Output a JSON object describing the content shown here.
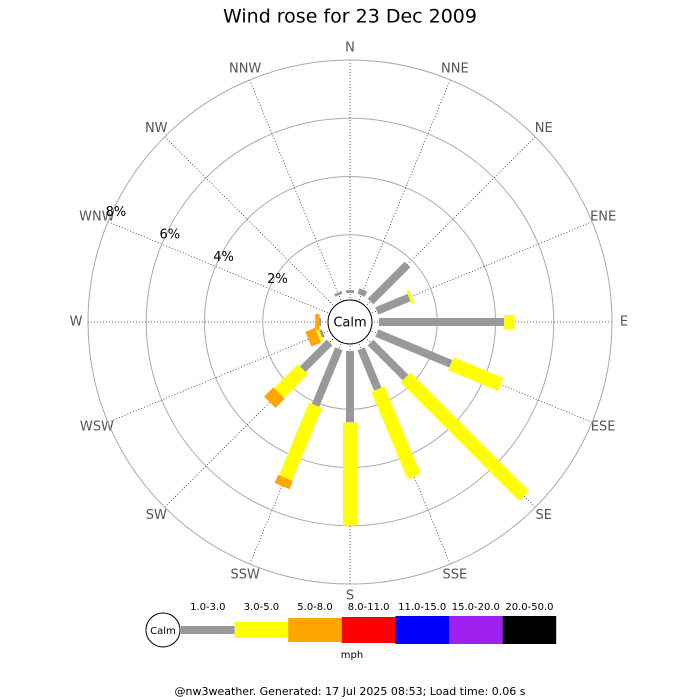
{
  "chart_data": {
    "type": "windrose",
    "title": "Wind rose for 23 Dec 2009",
    "calm_label": "Calm",
    "categories": [
      "N",
      "NNE",
      "NE",
      "ENE",
      "E",
      "ESE",
      "SE",
      "SSE",
      "S",
      "SSW",
      "SW",
      "WSW",
      "W",
      "WNW",
      "NW",
      "NNW"
    ],
    "rlim": [
      0,
      8
    ],
    "rticks": [
      {
        "value": 2,
        "label": "2%"
      },
      {
        "value": 4,
        "label": "4%"
      },
      {
        "value": 6,
        "label": "6%"
      },
      {
        "value": 8,
        "label": "8%"
      }
    ],
    "unit_label": "mph",
    "series": [
      {
        "name": "1.0-3.0",
        "color": "#999999",
        "values": [
          0.1,
          0.2,
          1.8,
          1.2,
          4.3,
          2.75,
          1.7,
          1.5,
          2.45,
          2.1,
          1.3,
          0.1,
          0.05,
          0,
          0,
          0.1
        ]
      },
      {
        "name": "3.0-5.0",
        "color": "#ffff00",
        "values": [
          0,
          0,
          0,
          0.1,
          0.35,
          1.85,
          5.75,
          3.25,
          3.55,
          2.7,
          1.15,
          0.1,
          0,
          0,
          0,
          0
        ]
      },
      {
        "name": "5.0-8.0",
        "color": "#ffa500",
        "values": [
          0,
          0,
          0,
          0,
          0,
          0,
          0,
          0,
          0,
          0.3,
          0.45,
          0.35,
          0.15,
          0,
          0,
          0
        ]
      },
      {
        "name": "8.0-11.0",
        "color": "#ff0000",
        "values": [
          0,
          0,
          0,
          0,
          0,
          0,
          0,
          0,
          0,
          0,
          0,
          0,
          0,
          0,
          0,
          0
        ]
      },
      {
        "name": "11.0-15.0",
        "color": "#0000ff",
        "values": [
          0,
          0,
          0,
          0,
          0,
          0,
          0,
          0,
          0,
          0,
          0,
          0,
          0,
          0,
          0,
          0
        ]
      },
      {
        "name": "15.0-20.0",
        "color": "#a020f0",
        "values": [
          0,
          0,
          0,
          0,
          0,
          0,
          0,
          0,
          0,
          0,
          0,
          0,
          0,
          0,
          0,
          0
        ]
      },
      {
        "name": "20.0-50.0",
        "color": "#000000",
        "values": [
          0,
          0,
          0,
          0,
          0,
          0,
          0,
          0,
          0,
          0,
          0,
          0,
          0,
          0,
          0,
          0
        ]
      }
    ]
  },
  "footer": "@nw3weather.  Generated: 17 Jul 2025 08:53; Load time: 0.06 s"
}
